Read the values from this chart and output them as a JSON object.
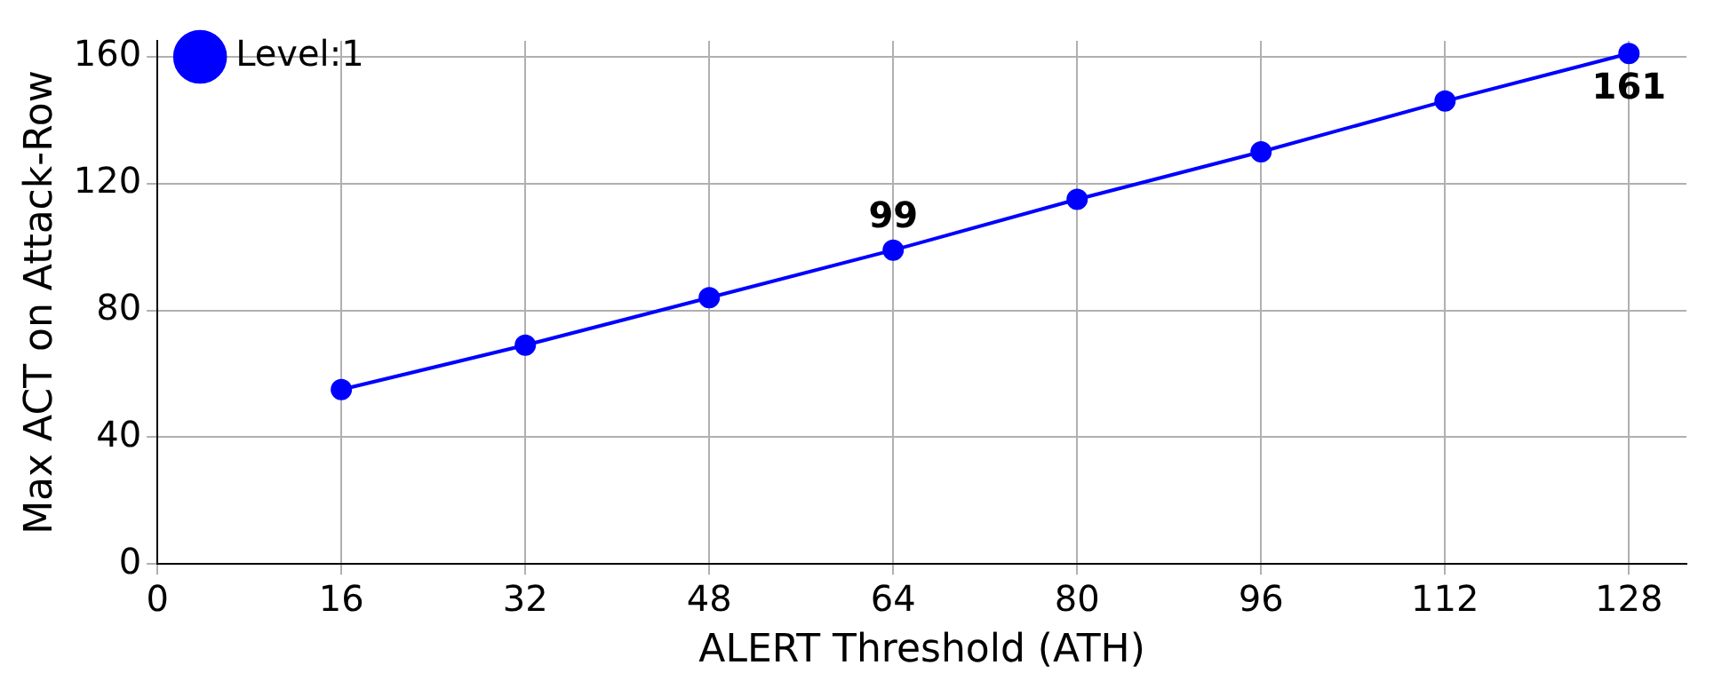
{
  "chart_data": {
    "type": "line",
    "xlabel": "ALERT Threshold (ATH)",
    "ylabel": "Max ACT on Attack-Row",
    "x": [
      16,
      32,
      48,
      64,
      80,
      96,
      112,
      128
    ],
    "series": [
      {
        "name": "Level:1",
        "color": "#0000ff",
        "values": [
          55,
          69,
          84,
          99,
          115,
          130,
          146,
          161
        ],
        "value_labels": [
          null,
          null,
          null,
          "99",
          null,
          null,
          null,
          "161"
        ]
      }
    ],
    "xlim": [
      0,
      133
    ],
    "xticks": [
      0,
      16,
      32,
      48,
      64,
      80,
      96,
      112,
      128
    ],
    "ylim": [
      0,
      165
    ],
    "yticks": [
      0,
      40,
      80,
      120,
      160
    ],
    "grid": true,
    "legend": "top left",
    "marker": "circle",
    "line_style": "solid"
  }
}
